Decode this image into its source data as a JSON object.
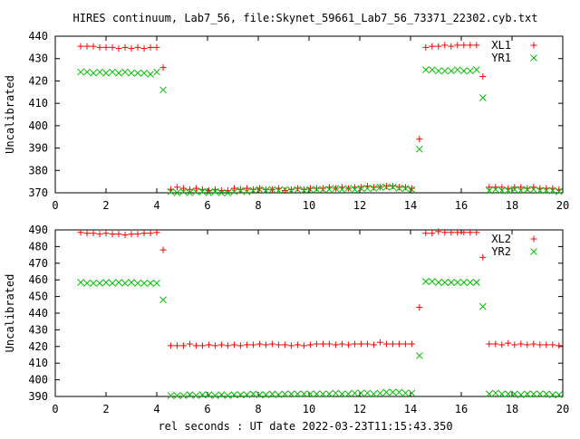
{
  "page": {
    "title": "HIRES continuum, Lab7_56, file:Skynet_59661_Lab7_56_73371_22302.cyb.txt",
    "xlabel": "rel seconds : UT date 2022-03-23T11:15:43.350"
  },
  "colors": {
    "red": "#ff0000",
    "green": "#00c000",
    "axis": "#000000",
    "background": "#ffffff"
  },
  "chart_data": [
    {
      "type": "scatter",
      "title": "",
      "xlabel": "",
      "ylabel": "Uncalibrated",
      "xlim": [
        0,
        20
      ],
      "ylim": [
        370,
        440
      ],
      "xticks": [
        0,
        2,
        4,
        6,
        8,
        10,
        12,
        14,
        16,
        18,
        20
      ],
      "yticks": [
        370,
        380,
        390,
        400,
        410,
        420,
        430,
        440
      ],
      "grid": false,
      "legend": "top-right",
      "series": [
        {
          "name": "XL1",
          "marker": "plus",
          "color": "#ff0000",
          "x": [
            1.0,
            1.25,
            1.5,
            1.75,
            2.0,
            2.25,
            2.5,
            2.75,
            3.0,
            3.25,
            3.5,
            3.75,
            4.0,
            4.25,
            4.55,
            4.8,
            5.05,
            5.3,
            5.55,
            5.8,
            6.05,
            6.3,
            6.55,
            6.8,
            7.05,
            7.3,
            7.55,
            7.8,
            8.05,
            8.3,
            8.55,
            8.8,
            9.05,
            9.3,
            9.55,
            9.8,
            10.05,
            10.3,
            10.55,
            10.8,
            11.05,
            11.3,
            11.55,
            11.8,
            12.05,
            12.3,
            12.55,
            12.8,
            13.05,
            13.3,
            13.55,
            13.8,
            14.05,
            14.35,
            14.6,
            14.85,
            15.1,
            15.35,
            15.6,
            15.85,
            16.1,
            16.35,
            16.6,
            16.85,
            17.1,
            17.35,
            17.6,
            17.85,
            18.1,
            18.35,
            18.6,
            18.85,
            19.1,
            19.35,
            19.6,
            19.85
          ],
          "y": [
            435.5,
            435.5,
            435.5,
            435.0,
            435.0,
            435.0,
            434.5,
            435.0,
            434.5,
            435.0,
            434.5,
            435.0,
            435.0,
            426.0,
            371.5,
            372.5,
            372.0,
            371.5,
            372.0,
            371.5,
            371.0,
            371.5,
            371.0,
            371.0,
            372.0,
            371.5,
            372.0,
            371.5,
            372.0,
            371.5,
            371.5,
            372.0,
            371.0,
            371.5,
            372.0,
            371.5,
            372.0,
            372.0,
            372.0,
            372.5,
            372.0,
            372.5,
            372.0,
            372.5,
            372.5,
            373.0,
            372.5,
            372.5,
            373.0,
            373.0,
            372.5,
            372.5,
            372.0,
            394.0,
            435.0,
            435.5,
            435.5,
            436.0,
            435.5,
            436.0,
            436.0,
            436.0,
            436.0,
            422.0,
            372.5,
            372.5,
            372.5,
            372.0,
            372.5,
            372.5,
            372.0,
            372.5,
            372.0,
            372.0,
            372.0,
            371.5
          ]
        },
        {
          "name": "YR1",
          "marker": "cross",
          "color": "#00c000",
          "x": [
            1.0,
            1.25,
            1.5,
            1.75,
            2.0,
            2.25,
            2.5,
            2.75,
            3.0,
            3.25,
            3.5,
            3.75,
            4.0,
            4.25,
            4.55,
            4.8,
            5.05,
            5.3,
            5.55,
            5.8,
            6.05,
            6.3,
            6.55,
            6.8,
            7.05,
            7.3,
            7.55,
            7.8,
            8.05,
            8.3,
            8.55,
            8.8,
            9.05,
            9.3,
            9.55,
            9.8,
            10.05,
            10.3,
            10.55,
            10.8,
            11.05,
            11.3,
            11.55,
            11.8,
            12.05,
            12.3,
            12.55,
            12.8,
            13.05,
            13.3,
            13.55,
            13.8,
            14.05,
            14.35,
            14.6,
            14.85,
            15.1,
            15.35,
            15.6,
            15.85,
            16.1,
            16.35,
            16.6,
            16.85,
            17.1,
            17.35,
            17.6,
            17.85,
            18.1,
            18.35,
            18.6,
            18.85,
            19.1,
            19.35,
            19.6,
            19.85
          ],
          "y": [
            424.0,
            424.0,
            423.5,
            424.0,
            423.5,
            424.0,
            423.5,
            424.0,
            423.5,
            423.5,
            423.5,
            423.0,
            424.0,
            416.0,
            370.5,
            370.0,
            370.5,
            370.0,
            370.5,
            370.5,
            370.0,
            370.5,
            370.0,
            370.0,
            370.5,
            371.0,
            370.5,
            371.0,
            371.5,
            371.0,
            371.5,
            371.0,
            371.5,
            371.0,
            371.5,
            371.0,
            371.5,
            371.5,
            371.5,
            371.5,
            372.0,
            371.5,
            372.0,
            371.5,
            372.0,
            372.0,
            372.0,
            372.5,
            372.5,
            372.5,
            372.0,
            372.0,
            371.5,
            389.5,
            425.0,
            425.0,
            424.5,
            424.5,
            424.5,
            425.0,
            424.5,
            424.5,
            425.0,
            412.5,
            371.0,
            371.5,
            371.0,
            371.0,
            371.5,
            371.0,
            371.5,
            371.5,
            371.0,
            371.0,
            371.0,
            370.5
          ]
        }
      ]
    },
    {
      "type": "scatter",
      "title": "",
      "xlabel": "rel seconds : UT date 2022-03-23T11:15:43.350",
      "ylabel": "Uncalibrated",
      "xlim": [
        0,
        20
      ],
      "ylim": [
        390,
        490
      ],
      "xticks": [
        0,
        2,
        4,
        6,
        8,
        10,
        12,
        14,
        16,
        18,
        20
      ],
      "yticks": [
        390,
        400,
        410,
        420,
        430,
        440,
        450,
        460,
        470,
        480,
        490
      ],
      "grid": false,
      "legend": "top-right",
      "series": [
        {
          "name": "XL2",
          "marker": "plus",
          "color": "#ff0000",
          "x": [
            1.0,
            1.25,
            1.5,
            1.75,
            2.0,
            2.25,
            2.5,
            2.75,
            3.0,
            3.25,
            3.5,
            3.75,
            4.0,
            4.25,
            4.55,
            4.8,
            5.05,
            5.3,
            5.55,
            5.8,
            6.05,
            6.3,
            6.55,
            6.8,
            7.05,
            7.3,
            7.55,
            7.8,
            8.05,
            8.3,
            8.55,
            8.8,
            9.05,
            9.3,
            9.55,
            9.8,
            10.05,
            10.3,
            10.55,
            10.8,
            11.05,
            11.3,
            11.55,
            11.8,
            12.05,
            12.3,
            12.55,
            12.8,
            13.05,
            13.3,
            13.55,
            13.8,
            14.05,
            14.35,
            14.6,
            14.85,
            15.1,
            15.35,
            15.6,
            15.85,
            16.1,
            16.35,
            16.6,
            16.85,
            17.1,
            17.35,
            17.6,
            17.85,
            18.1,
            18.35,
            18.6,
            18.85,
            19.1,
            19.35,
            19.6,
            19.85
          ],
          "y": [
            488.5,
            488.0,
            488.0,
            487.5,
            488.0,
            487.5,
            487.5,
            487.0,
            487.5,
            487.5,
            488.0,
            488.0,
            488.5,
            478.0,
            420.5,
            420.5,
            420.5,
            421.5,
            420.5,
            420.5,
            421.0,
            420.5,
            421.0,
            420.5,
            421.0,
            420.5,
            421.0,
            421.0,
            421.5,
            421.0,
            421.5,
            421.0,
            421.0,
            420.5,
            421.0,
            420.5,
            421.0,
            421.5,
            421.5,
            421.5,
            421.0,
            421.5,
            421.0,
            421.5,
            421.5,
            421.5,
            421.0,
            422.5,
            421.5,
            421.5,
            421.5,
            421.5,
            421.5,
            443.5,
            488.0,
            488.0,
            489.0,
            488.5,
            488.5,
            488.5,
            488.5,
            488.5,
            488.5,
            473.5,
            421.5,
            421.5,
            421.0,
            422.0,
            421.0,
            421.5,
            421.0,
            421.5,
            421.0,
            421.0,
            421.0,
            420.5
          ]
        },
        {
          "name": "YR2",
          "marker": "cross",
          "color": "#00c000",
          "x": [
            1.0,
            1.25,
            1.5,
            1.75,
            2.0,
            2.25,
            2.5,
            2.75,
            3.0,
            3.25,
            3.5,
            3.75,
            4.0,
            4.25,
            4.55,
            4.8,
            5.05,
            5.3,
            5.55,
            5.8,
            6.05,
            6.3,
            6.55,
            6.8,
            7.05,
            7.3,
            7.55,
            7.8,
            8.05,
            8.3,
            8.55,
            8.8,
            9.05,
            9.3,
            9.55,
            9.8,
            10.05,
            10.3,
            10.55,
            10.8,
            11.05,
            11.3,
            11.55,
            11.8,
            12.05,
            12.3,
            12.55,
            12.8,
            13.05,
            13.3,
            13.55,
            13.8,
            14.05,
            14.35,
            14.6,
            14.85,
            15.1,
            15.35,
            15.6,
            15.85,
            16.1,
            16.35,
            16.6,
            16.85,
            17.1,
            17.35,
            17.6,
            17.85,
            18.1,
            18.35,
            18.6,
            18.85,
            19.1,
            19.35,
            19.6,
            19.85
          ],
          "y": [
            458.5,
            458.0,
            458.0,
            458.0,
            458.5,
            458.0,
            458.5,
            458.0,
            458.5,
            458.0,
            458.0,
            458.0,
            458.0,
            448.0,
            390.5,
            390.5,
            390.5,
            391.0,
            390.5,
            391.0,
            391.0,
            390.5,
            391.0,
            390.5,
            391.0,
            391.0,
            391.0,
            391.5,
            391.0,
            391.0,
            391.5,
            391.0,
            391.5,
            391.5,
            391.5,
            391.5,
            391.5,
            391.5,
            391.5,
            391.5,
            392.0,
            391.5,
            391.5,
            392.0,
            392.0,
            392.0,
            391.5,
            392.0,
            392.5,
            392.5,
            392.5,
            392.0,
            392.0,
            414.5,
            459.0,
            459.0,
            458.5,
            458.5,
            458.5,
            458.5,
            458.5,
            458.5,
            458.5,
            444.0,
            391.5,
            392.0,
            391.5,
            391.5,
            391.5,
            391.0,
            391.5,
            391.5,
            391.5,
            391.5,
            391.0,
            391.0
          ]
        }
      ]
    }
  ]
}
